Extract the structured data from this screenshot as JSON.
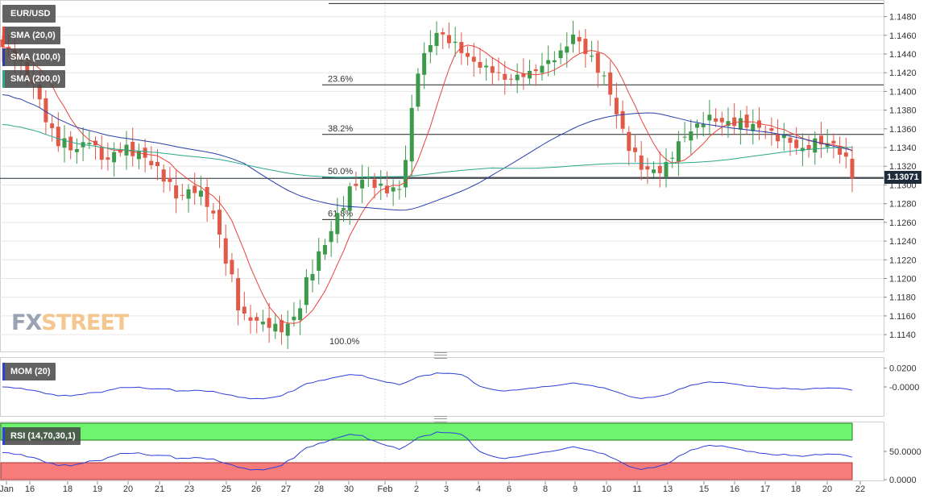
{
  "indicators": {
    "symbol": "EUR/USD",
    "sma20": "SMA (20,0)",
    "sma100": "SMA (100,0)",
    "sma200": "SMA (200,0)",
    "mom": "MOM (20)",
    "rsi": "RSI (14,70,30,1)"
  },
  "watermark": {
    "fx": "FX",
    "street": "STREET"
  },
  "last_price": "1.13071",
  "colors": {
    "up": "#3c9a4a",
    "down": "#e05a4a",
    "sma20": "#e8443a",
    "sma100": "#2a3fa8",
    "sma200": "#2aa88a",
    "mom_line": "#2f3fd8",
    "rsi_line": "#2f3fd8",
    "rsi_overbought": "#6ef46e",
    "rsi_oversold": "#f77b7b",
    "axis_text": "#333333",
    "grid": "#e6e6e6"
  },
  "fib_levels": [
    {
      "label": "23.6%",
      "price": 1.1407
    },
    {
      "label": "38.2%",
      "price": 1.1354
    },
    {
      "label": "50.0%",
      "price": 1.1308
    },
    {
      "label": "61.8%",
      "price": 1.1263
    },
    {
      "label": "100.0%",
      "price": 1.1128
    }
  ],
  "top_line_price": 1.1494,
  "chart_data": [
    {
      "type": "candlestick",
      "title": "EUR/USD",
      "ylim": [
        1.1122,
        1.1496
      ],
      "yticks": [
        "1.1480",
        "1.1460",
        "1.1440",
        "1.1420",
        "1.1400",
        "1.1380",
        "1.1360",
        "1.1340",
        "1.1320",
        "1.1300",
        "1.1280",
        "1.1260",
        "1.1240",
        "1.1220",
        "1.1200",
        "1.1180",
        "1.1160",
        "1.1140"
      ],
      "ytick_values": [
        1.148,
        1.146,
        1.144,
        1.142,
        1.14,
        1.138,
        1.136,
        1.134,
        1.132,
        1.13,
        1.128,
        1.126,
        1.124,
        1.122,
        1.12,
        1.118,
        1.116,
        1.114
      ],
      "x_labels": [
        "Jan",
        "16",
        "18",
        "19",
        "20",
        "21",
        "23",
        "25",
        "26",
        "27",
        "28",
        "30",
        "Feb",
        "2",
        "3",
        "4",
        "6",
        "8",
        "9",
        "10",
        "11",
        "13",
        "15",
        "16",
        "17",
        "18",
        "20",
        "22"
      ],
      "anchors": [
        [
          1.144,
          1.1455
        ],
        [
          1.1418,
          1.1435
        ],
        [
          1.1395,
          1.1415
        ],
        [
          1.133,
          1.136
        ],
        [
          1.1325,
          1.1345
        ],
        [
          1.1345,
          1.136
        ],
        [
          1.131,
          1.133
        ],
        [
          1.133,
          1.135
        ],
        [
          1.133,
          1.1345
        ],
        [
          1.13,
          1.132
        ],
        [
          1.128,
          1.13
        ],
        [
          1.129,
          1.131
        ],
        [
          1.126,
          1.128
        ],
        [
          1.12,
          1.124
        ],
        [
          1.114,
          1.117
        ],
        [
          1.1145,
          1.1155
        ],
        [
          1.114,
          1.116
        ],
        [
          1.115,
          1.117
        ],
        [
          1.1195,
          1.123
        ],
        [
          1.125,
          1.127
        ],
        [
          1.128,
          1.13
        ],
        [
          1.13,
          1.1315
        ],
        [
          1.129,
          1.131
        ],
        [
          1.128,
          1.13
        ],
        [
          1.142,
          1.144
        ],
        [
          1.146,
          1.147
        ],
        [
          1.144,
          1.1455
        ],
        [
          1.143,
          1.144
        ],
        [
          1.142,
          1.143
        ],
        [
          1.1405,
          1.1415
        ],
        [
          1.1415,
          1.1425
        ],
        [
          1.142,
          1.143
        ],
        [
          1.143,
          1.144
        ],
        [
          1.146,
          1.147
        ],
        [
          1.142,
          1.144
        ],
        [
          1.139,
          1.141
        ],
        [
          1.134,
          1.136
        ],
        [
          1.13,
          1.132
        ],
        [
          1.131,
          1.132
        ],
        [
          1.134,
          1.1355
        ],
        [
          1.1355,
          1.1365
        ],
        [
          1.1365,
          1.1385
        ],
        [
          1.136,
          1.1375
        ],
        [
          1.135,
          1.137
        ],
        [
          1.1355,
          1.137
        ],
        [
          1.134,
          1.136
        ],
        [
          1.1325,
          1.134
        ],
        [
          1.1345,
          1.136
        ],
        [
          1.133,
          1.135
        ],
        [
          1.13,
          1.132
        ]
      ],
      "mom": {
        "ylim": [
          -0.03,
          0.03
        ],
        "yticks": [
          "0.0200",
          "-0.0000"
        ],
        "ytick_values": [
          0.02,
          0.0
        ]
      },
      "rsi": {
        "ylim": [
          0,
          100
        ],
        "yticks": [
          "50.0000",
          "0.0000"
        ],
        "ytick_values": [
          50,
          0
        ],
        "overbought": 70,
        "oversold": 30
      }
    }
  ]
}
